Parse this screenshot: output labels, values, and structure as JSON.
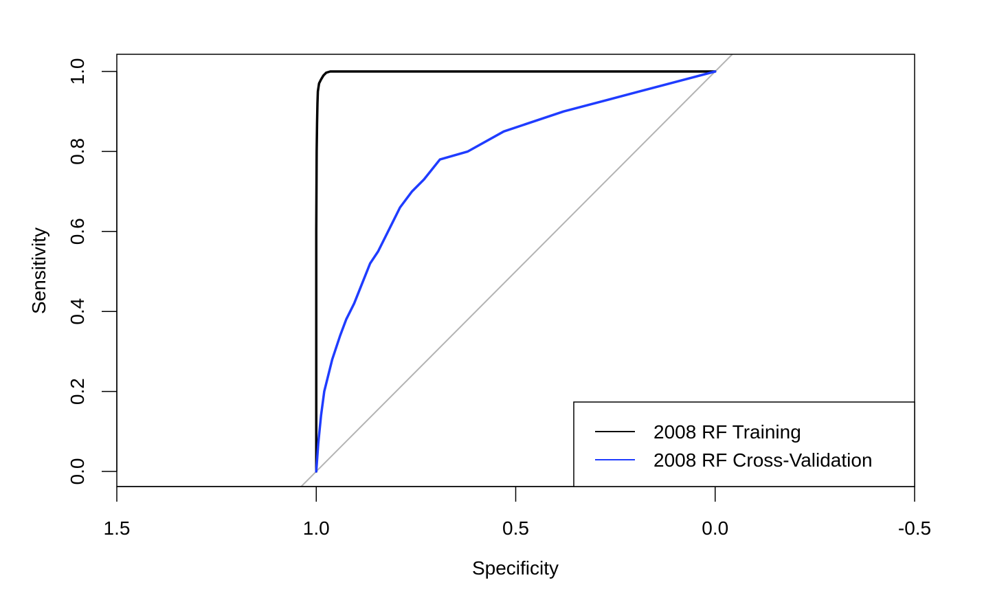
{
  "chart_data": {
    "type": "line",
    "title": "",
    "xlabel": "Specificity",
    "ylabel": "Sensitivity",
    "xlim": [
      1.5,
      -0.5
    ],
    "ylim": [
      0.0,
      1.0
    ],
    "x_reversed": true,
    "grid": false,
    "x_ticks": [
      1.5,
      1.0,
      0.5,
      0.0,
      -0.5
    ],
    "x_tick_labels": [
      "1.5",
      "1.0",
      "0.5",
      "0.0",
      "-0.5"
    ],
    "y_ticks": [
      0.0,
      0.2,
      0.4,
      0.6,
      0.8,
      1.0
    ],
    "y_tick_labels": [
      "0.0",
      "0.2",
      "0.4",
      "0.6",
      "0.8",
      "1.0"
    ],
    "reference_line": {
      "from": [
        1.0,
        0.0
      ],
      "to": [
        0.0,
        1.0
      ],
      "color": "#b3b3b3"
    },
    "legend": {
      "position": "bottom-right",
      "entries": [
        {
          "label": "2008 RF Training",
          "color": "#000000"
        },
        {
          "label": "2008 RF Cross-Validation",
          "color": "#1f3cff"
        }
      ]
    },
    "series": [
      {
        "name": "2008 RF Training",
        "color": "#000000",
        "x": [
          1.0,
          1.0,
          1.0,
          0.999,
          0.998,
          0.997,
          0.996,
          0.993,
          0.988,
          0.982,
          0.975,
          0.965,
          0.9,
          0.7,
          0.5,
          0.3,
          0.1,
          0.0
        ],
        "y": [
          0.0,
          0.3,
          0.6,
          0.8,
          0.87,
          0.92,
          0.95,
          0.97,
          0.98,
          0.99,
          0.997,
          1.0,
          1.0,
          1.0,
          1.0,
          1.0,
          1.0,
          1.0
        ]
      },
      {
        "name": "2008 RF Cross-Validation",
        "color": "#1f3cff",
        "x": [
          1.0,
          0.995,
          0.988,
          0.98,
          0.97,
          0.96,
          0.95,
          0.94,
          0.925,
          0.905,
          0.885,
          0.865,
          0.845,
          0.81,
          0.79,
          0.76,
          0.73,
          0.69,
          0.62,
          0.53,
          0.38,
          0.19,
          0.0
        ],
        "y": [
          0.0,
          0.07,
          0.14,
          0.2,
          0.24,
          0.28,
          0.31,
          0.34,
          0.38,
          0.42,
          0.47,
          0.52,
          0.55,
          0.62,
          0.66,
          0.7,
          0.73,
          0.78,
          0.8,
          0.85,
          0.9,
          0.95,
          1.0
        ]
      }
    ]
  }
}
